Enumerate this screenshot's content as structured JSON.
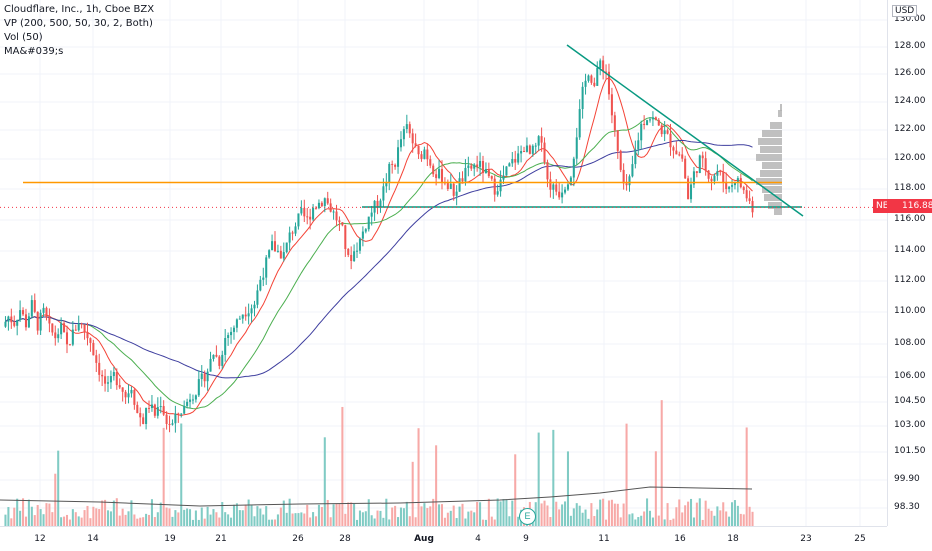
{
  "legend": {
    "symbol": "Cloudflare, Inc., 1h, Cboe BZX",
    "vp": "VP (200, 500, 50, 30, 2, Both)",
    "vol": "Vol (50)",
    "ma": "MA&#039;s"
  },
  "price_axis": {
    "currency": "USD",
    "ticks": [
      "130.00",
      "128.00",
      "126.00",
      "124.00",
      "122.00",
      "120.00",
      "118.00",
      "116.00",
      "114.00",
      "112.00",
      "110.00",
      "108.00",
      "106.00",
      "104.50",
      "103.00",
      "101.50",
      "99.90",
      "98.30"
    ],
    "last_price": "116.88",
    "ticker": "NET"
  },
  "time_axis": {
    "ticks": [
      "12",
      "14",
      "19",
      "21",
      "26",
      "28",
      "Aug",
      "4",
      "9",
      "11",
      "16",
      "18",
      "23",
      "25"
    ]
  },
  "colors": {
    "up": "#26a69a",
    "down": "#ef5350",
    "ma_fast": "#f44336",
    "ma_mid": "#4caf50",
    "ma_slow": "#3f3f9f",
    "orange_line": "#ff9800",
    "trend_line": "#089981",
    "volume_up": "#80cbc4",
    "volume_down": "#f7a9a7"
  },
  "chart_data": {
    "type": "candlestick",
    "title": "Cloudflare, Inc., 1h, Cboe BZX",
    "ylim": [
      98.3,
      130
    ],
    "horizontal_levels": [
      118.6,
      116.9
    ],
    "trendline": {
      "from": [
        128,
        "Aug 9"
      ],
      "to": [
        116.5,
        "Aug 20"
      ]
    },
    "ma_series": [
      "fast",
      "mid",
      "slow"
    ],
    "close_path": [
      108.6,
      109.3,
      108.9,
      109.8,
      108.8,
      110.1,
      108.7,
      109.6,
      108.4,
      107.9,
      108.5,
      107.2,
      108.1,
      109.0,
      108.3,
      107.6,
      106.2,
      105.0,
      104.3,
      105.2,
      104.7,
      103.8,
      104.5,
      102.6,
      102.1,
      103.2,
      102.5,
      103.4,
      102.0,
      101.8,
      102.6,
      103.0,
      103.8,
      104.2,
      104.9,
      105.6,
      106.8,
      106.2,
      107.8,
      108.3,
      108.9,
      109.6,
      109.9,
      110.2,
      111.9,
      113.0,
      114.2,
      113.8,
      113.6,
      114.9,
      115.7,
      116.4,
      116.0,
      116.9,
      117.2,
      117.5,
      116.8,
      116.1,
      115.2,
      113.2,
      113.8,
      114.6,
      115.7,
      116.6,
      117.2,
      118.1,
      119.5,
      120.0,
      121.6,
      122.4,
      121.4,
      120.3,
      120.9,
      120.0,
      119.2,
      119.0,
      118.4,
      117.9,
      118.6,
      119.2,
      119.6,
      119.9,
      119.5,
      118.8,
      118.2,
      118.6,
      119.4,
      120.0,
      120.4,
      121.1,
      120.5,
      121.0,
      121.8,
      118.7,
      118.2,
      117.9,
      118.5,
      119.3,
      122.0,
      124.8,
      126.4,
      125.3,
      127.0,
      126.3,
      123.3,
      120.6,
      118.1,
      118.6,
      120.8,
      122.6,
      123.2,
      123.0,
      122.5,
      122.0,
      121.4,
      120.8,
      120.3,
      117.5,
      119.2,
      120.2,
      119.6,
      118.9,
      119.4,
      118.7,
      118.2,
      118.9,
      118.4,
      117.6,
      116.88
    ]
  }
}
